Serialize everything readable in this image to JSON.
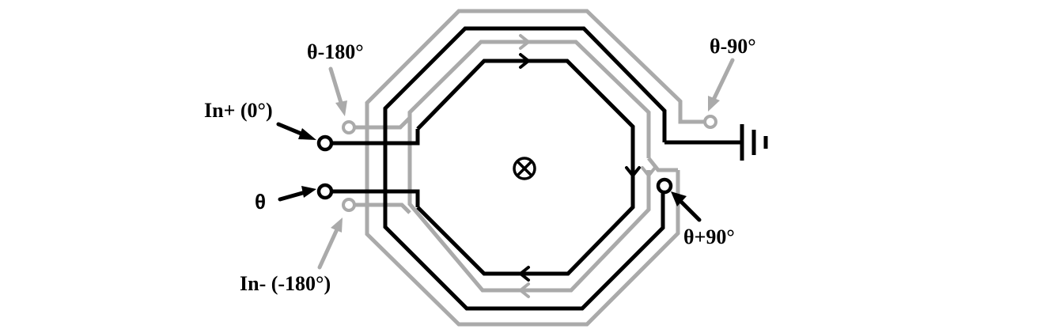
{
  "colors": {
    "black": "#000000",
    "gray": "#aaaaaa",
    "background": "#ffffff"
  },
  "labels": {
    "in_plus": "In+ (0°)",
    "theta": "θ",
    "in_minus": "In- (-180°)",
    "theta_minus_180": "θ-180°",
    "theta_minus_90": "θ-90°",
    "theta_plus_90": "θ+90°"
  },
  "center_symbol": "⊗",
  "icons": {
    "center": "current-into-page-icon",
    "ground": "ground-icon",
    "arrows": "current-direction-arrow-icon"
  }
}
